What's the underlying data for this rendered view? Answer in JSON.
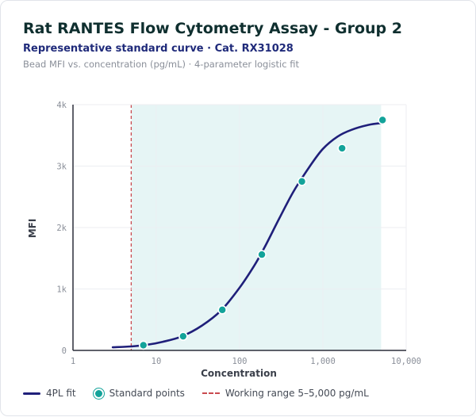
{
  "header": {
    "title": "Rat RANTES Flow Cytometry Assay - Group 2",
    "subtitle": "Representative standard curve · Cat. RX31028",
    "caption": "Bead MFI vs. concentration (pg/mL) · 4-parameter logistic fit"
  },
  "colors": {
    "curve": "#1f1f7a",
    "points": "#13a39a",
    "range_line": "#c94a4f",
    "range_fill": "#e6f5f5",
    "grid": "#eceef2",
    "axis": "#2b2f3a"
  },
  "chart_data": {
    "type": "scatter",
    "xlabel": "Concentration",
    "ylabel": "MFI",
    "x_scale": "log",
    "xlim": [
      1,
      10000
    ],
    "ylim": [
      0,
      4000
    ],
    "x_ticks": [
      {
        "value": 1,
        "label": "1"
      },
      {
        "value": 10,
        "label": "10"
      },
      {
        "value": 100,
        "label": "100"
      },
      {
        "value": 1000,
        "label": "1,000"
      },
      {
        "value": 10000,
        "label": "10,000"
      }
    ],
    "y_ticks": [
      {
        "value": 0,
        "label": "0"
      },
      {
        "value": 1000,
        "label": "1k"
      },
      {
        "value": 2000,
        "label": "2k"
      },
      {
        "value": 3000,
        "label": "3k"
      },
      {
        "value": 4000,
        "label": "4k"
      }
    ],
    "grid": true,
    "working_range": [
      5,
      5000
    ],
    "series": [
      {
        "name": "4PL fit",
        "kind": "line",
        "x": [
          3,
          5,
          8,
          12,
          20,
          35,
          60,
          100,
          150,
          200,
          300,
          450,
          700,
          1000,
          1500,
          2200,
          3500,
          5000
        ],
        "y": [
          50,
          65,
          95,
          140,
          225,
          400,
          650,
          1020,
          1380,
          1680,
          2150,
          2600,
          3000,
          3280,
          3480,
          3590,
          3670,
          3700
        ]
      },
      {
        "name": "Standard points",
        "kind": "scatter",
        "x": [
          7,
          21,
          62,
          185,
          560,
          1700,
          5200
        ],
        "y": [
          85,
          230,
          660,
          1560,
          2750,
          3290,
          3750
        ]
      }
    ]
  },
  "legend": {
    "fit_label": "4PL fit",
    "points_label": "Standard points",
    "range_label": "Working range 5–5,000 pg/mL"
  }
}
